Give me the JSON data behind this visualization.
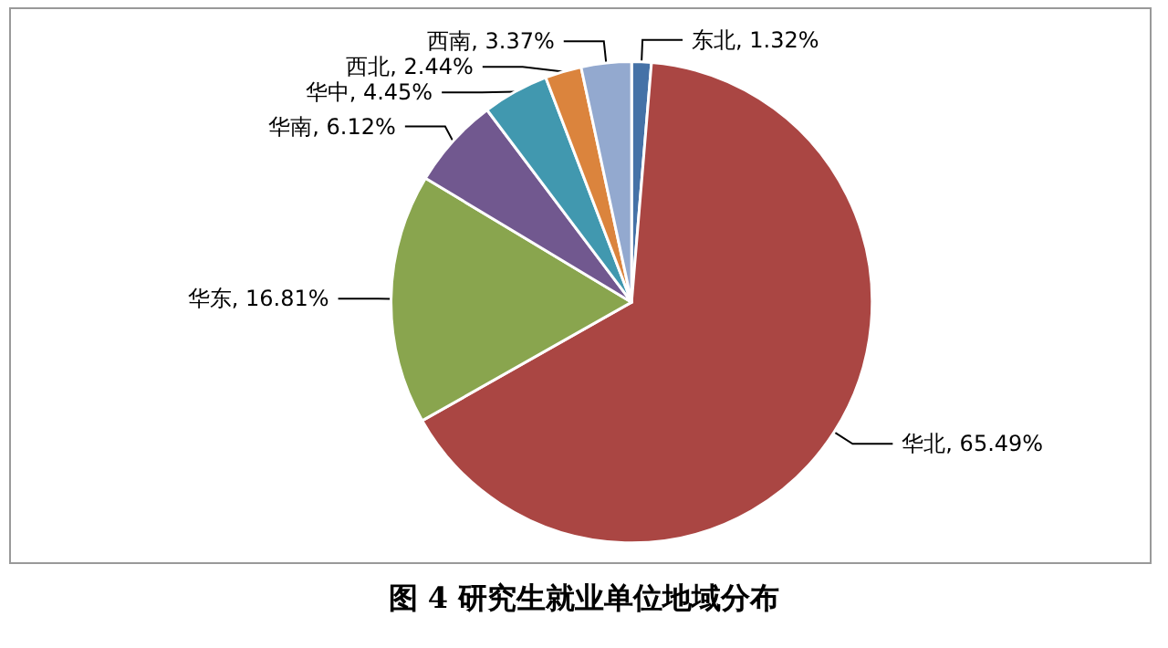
{
  "chart_data": {
    "type": "pie",
    "title": "图 4  研究生就业单位地域分布",
    "categories": [
      "东北",
      "华北",
      "华东",
      "华南",
      "华中",
      "西北",
      "西南"
    ],
    "values": [
      1.32,
      65.49,
      16.81,
      6.12,
      4.45,
      2.44,
      3.37
    ],
    "value_labels": [
      "1.32%",
      "65.49%",
      "16.81%",
      "6.12%",
      "4.45%",
      "2.44%",
      "3.37%"
    ],
    "colors": [
      "#4572a7",
      "#aa4643",
      "#89a54e",
      "#71588f",
      "#4198af",
      "#db843d",
      "#93a9cf"
    ],
    "legend": false
  }
}
